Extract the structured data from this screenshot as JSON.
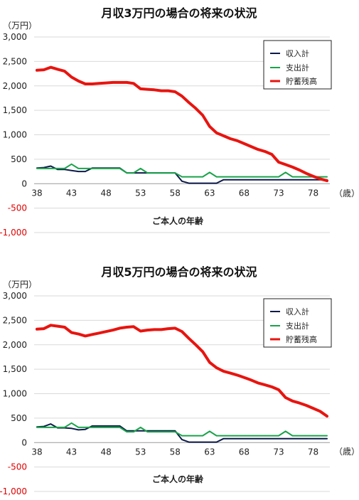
{
  "chart_data": [
    {
      "type": "line",
      "title": "月収3万円の場合の将来の状況",
      "unit_label": "（万円）",
      "xlabel": "ご本人の年齢",
      "x_unit_label": "（歳）",
      "ylim": [
        -1000,
        3000
      ],
      "yticks": [
        3000,
        2500,
        2000,
        1500,
        1000,
        500,
        0,
        -500,
        -1000
      ],
      "ytick_labels": [
        "3,000",
        "2,500",
        "2,000",
        "1,500",
        "1,000",
        "500",
        "0",
        "-500",
        "-1,000"
      ],
      "xticks": [
        38,
        43,
        48,
        53,
        58,
        63,
        68,
        73,
        78
      ],
      "x": [
        38,
        39,
        40,
        41,
        42,
        43,
        44,
        45,
        46,
        47,
        48,
        49,
        50,
        51,
        52,
        53,
        54,
        55,
        56,
        57,
        58,
        59,
        60,
        61,
        62,
        63,
        64,
        65,
        66,
        67,
        68,
        69,
        70,
        71,
        72,
        73,
        74,
        75,
        76,
        77,
        78,
        79,
        80
      ],
      "legend_position": "top-right",
      "series": [
        {
          "name": "収入計",
          "color": "#0d1b4a",
          "stroke": 2,
          "values": [
            320,
            330,
            360,
            290,
            290,
            270,
            250,
            250,
            320,
            320,
            320,
            320,
            320,
            220,
            220,
            220,
            220,
            220,
            220,
            220,
            220,
            50,
            10,
            10,
            10,
            10,
            10,
            80,
            80,
            80,
            80,
            80,
            80,
            80,
            80,
            80,
            80,
            80,
            80,
            80,
            80,
            80,
            80
          ]
        },
        {
          "name": "支出計",
          "color": "#1aa34a",
          "stroke": 2,
          "values": [
            310,
            310,
            310,
            310,
            310,
            400,
            310,
            310,
            310,
            310,
            310,
            310,
            310,
            220,
            220,
            310,
            220,
            220,
            220,
            220,
            220,
            140,
            140,
            140,
            140,
            230,
            140,
            140,
            140,
            140,
            140,
            140,
            140,
            140,
            140,
            140,
            230,
            140,
            140,
            140,
            140,
            140,
            140
          ]
        },
        {
          "name": "貯蓄残高",
          "color": "#e8140f",
          "stroke": 4,
          "values": [
            2320,
            2330,
            2380,
            2340,
            2300,
            2180,
            2100,
            2040,
            2040,
            2050,
            2060,
            2070,
            2070,
            2070,
            2050,
            1940,
            1930,
            1920,
            1900,
            1900,
            1880,
            1790,
            1660,
            1540,
            1400,
            1170,
            1040,
            980,
            920,
            880,
            820,
            760,
            700,
            660,
            600,
            440,
            390,
            340,
            280,
            210,
            150,
            100,
            60
          ]
        }
      ]
    },
    {
      "type": "line",
      "title": "月収5万円の場合の将来の状況",
      "unit_label": "（万円）",
      "xlabel": "ご本人の年齢",
      "x_unit_label": "（歳）",
      "ylim": [
        -1000,
        3000
      ],
      "yticks": [
        3000,
        2500,
        2000,
        1500,
        1000,
        500,
        0,
        -500,
        -1000
      ],
      "ytick_labels": [
        "3,000",
        "2,500",
        "2,000",
        "1,500",
        "1,000",
        "500",
        "0",
        "-500",
        "-1,000"
      ],
      "xticks": [
        38,
        43,
        48,
        53,
        58,
        63,
        68,
        73,
        78
      ],
      "x": [
        38,
        39,
        40,
        41,
        42,
        43,
        44,
        45,
        46,
        47,
        48,
        49,
        50,
        51,
        52,
        53,
        54,
        55,
        56,
        57,
        58,
        59,
        60,
        61,
        62,
        63,
        64,
        65,
        66,
        67,
        68,
        69,
        70,
        71,
        72,
        73,
        74,
        75,
        76,
        77,
        78,
        79,
        80
      ],
      "legend_position": "top-right",
      "series": [
        {
          "name": "収入計",
          "color": "#0d1b4a",
          "stroke": 2,
          "values": [
            320,
            330,
            380,
            300,
            300,
            290,
            260,
            270,
            340,
            340,
            340,
            340,
            340,
            240,
            240,
            240,
            240,
            240,
            240,
            240,
            240,
            60,
            10,
            10,
            10,
            10,
            10,
            80,
            80,
            80,
            80,
            80,
            80,
            80,
            80,
            80,
            80,
            80,
            80,
            80,
            80,
            80,
            80
          ]
        },
        {
          "name": "支出計",
          "color": "#1aa34a",
          "stroke": 2,
          "values": [
            310,
            310,
            310,
            310,
            310,
            400,
            310,
            310,
            310,
            310,
            310,
            310,
            310,
            220,
            220,
            310,
            220,
            220,
            220,
            220,
            220,
            140,
            140,
            140,
            140,
            230,
            140,
            140,
            140,
            140,
            140,
            140,
            140,
            140,
            140,
            140,
            230,
            140,
            140,
            140,
            140,
            140,
            140
          ]
        },
        {
          "name": "貯蓄残高",
          "color": "#e8140f",
          "stroke": 4,
          "values": [
            2320,
            2330,
            2400,
            2380,
            2360,
            2250,
            2220,
            2180,
            2210,
            2240,
            2270,
            2300,
            2340,
            2360,
            2370,
            2280,
            2300,
            2310,
            2310,
            2330,
            2340,
            2270,
            2130,
            2000,
            1860,
            1640,
            1530,
            1460,
            1420,
            1380,
            1330,
            1280,
            1220,
            1180,
            1140,
            1080,
            920,
            850,
            810,
            760,
            700,
            640,
            540
          ]
        }
      ]
    }
  ]
}
